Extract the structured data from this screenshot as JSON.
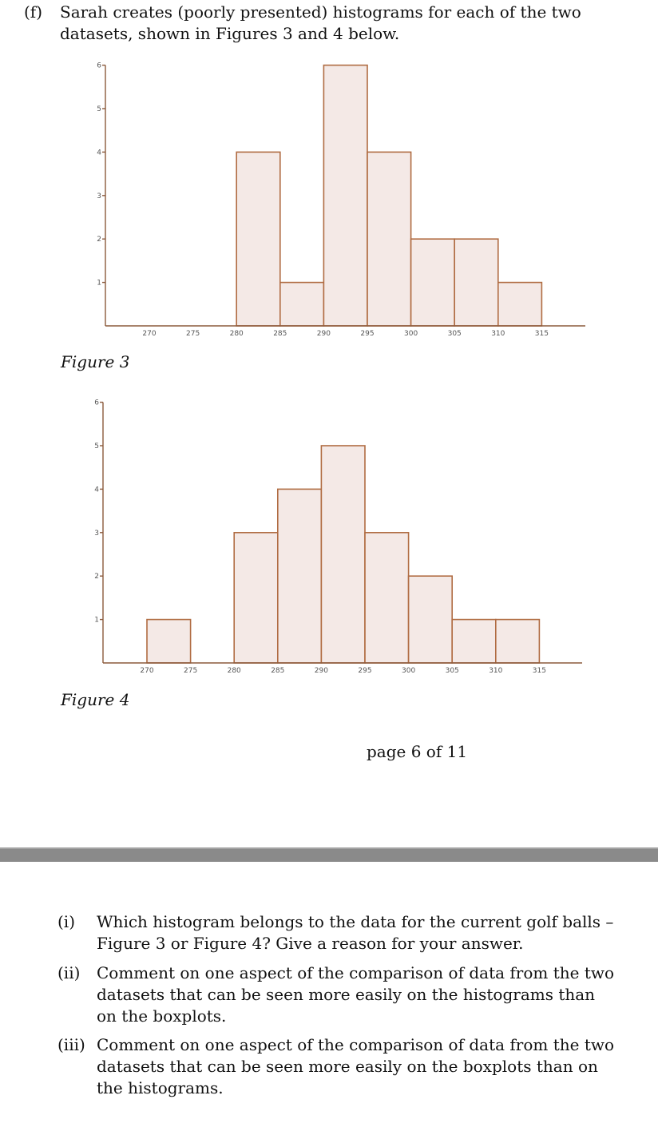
{
  "intro": {
    "label": "(f)",
    "text": "Sarah creates (poorly presented) histograms for each of the two datasets, shown in Figures 3 and 4 below."
  },
  "chart_data": [
    {
      "type": "bar",
      "caption": "Figure 3",
      "title": "",
      "xlabel": "",
      "ylabel": "",
      "bin_width": 5,
      "bins_start": [
        270,
        275,
        280,
        285,
        290,
        295,
        300,
        305,
        310
      ],
      "values": [
        0,
        0,
        4,
        1,
        6,
        4,
        2,
        2,
        1
      ],
      "x_ticks": [
        "270",
        "275",
        "280",
        "285",
        "290",
        "295",
        "300",
        "305",
        "310",
        "315"
      ],
      "y_ticks": [
        "1",
        "2",
        "3",
        "4",
        "5",
        "6"
      ],
      "xlim": [
        265,
        320
      ],
      "ylim": [
        0,
        6
      ],
      "grid": false,
      "bar_fill": "#f4e9e6",
      "bar_edge": "#b06c42"
    },
    {
      "type": "bar",
      "caption": "Figure 4",
      "title": "",
      "xlabel": "",
      "ylabel": "",
      "bin_width": 5,
      "bins_start": [
        270,
        275,
        280,
        285,
        290,
        295,
        300,
        305,
        310
      ],
      "values": [
        1,
        0,
        3,
        4,
        5,
        3,
        2,
        1,
        1
      ],
      "x_ticks": [
        "270",
        "275",
        "280",
        "285",
        "290",
        "295",
        "300",
        "305",
        "310",
        "315"
      ],
      "y_ticks": [
        "1",
        "2",
        "3",
        "4",
        "5",
        "6"
      ],
      "xlim": [
        265,
        320
      ],
      "ylim": [
        0,
        6
      ],
      "grid": false,
      "bar_fill": "#f4e9e6",
      "bar_edge": "#b06c42"
    }
  ],
  "footer": {
    "page": "page 6 of 11"
  },
  "questions": [
    {
      "label": "(i)",
      "text": "Which histogram belongs to the data for the current golf balls – Figure 3 or Figure 4? Give a reason for your answer."
    },
    {
      "label": "(ii)",
      "text": "Comment on one aspect of the comparison of data from the two datasets that can be seen more easily on the histograms than on the boxplots."
    },
    {
      "label": "(iii)",
      "text": "Comment on one aspect of the comparison of data from the two datasets that can be seen more easily on the boxplots than on the histograms."
    }
  ]
}
